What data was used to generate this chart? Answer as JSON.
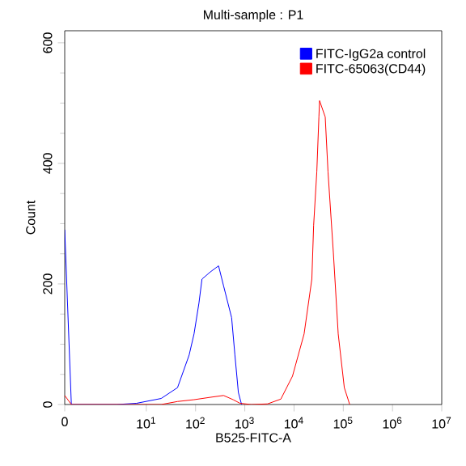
{
  "chart_data": {
    "type": "line",
    "title": "Multi-sample : P1",
    "xlabel": "B525-FITC-A",
    "ylabel": "Count",
    "log": "x",
    "xlim": [
      0.22,
      10000000
    ],
    "xticks": [
      {
        "value": 0.22,
        "label": "0"
      },
      {
        "value": 10,
        "label": "10$^{1}$"
      },
      {
        "value": 100,
        "label": "10$^{2}$"
      },
      {
        "value": 1000,
        "label": "10$^{3}$"
      },
      {
        "value": 10000,
        "label": "10$^{4}$"
      },
      {
        "value": 100000,
        "label": "10$^{5}$"
      },
      {
        "value": 1000000,
        "label": "10$^{6}$"
      },
      {
        "value": 10000000,
        "label": "10$^{7}$"
      }
    ],
    "ylim": [
      0,
      620
    ],
    "yticks": [
      0,
      200,
      400,
      600
    ],
    "grid": false,
    "legend": "top right",
    "marker": "none",
    "line_style": "solid",
    "series": [
      {
        "name": "FITC-IgG2a control",
        "color": "#0000ff",
        "x": [
          0.22,
          0.3,
          2.5,
          6.3,
          20,
          43,
          74,
          93,
          117,
          135,
          200,
          293,
          370,
          540,
          630,
          740,
          860
        ],
        "values": [
          290,
          0,
          0,
          2,
          10,
          28,
          82,
          117,
          168,
          208,
          220,
          230,
          197,
          144,
          82,
          20,
          0
        ]
      },
      {
        "name": "FITC-65063(CD44)",
        "color": "#ff0000",
        "x": [
          0.22,
          0.3,
          20,
          43,
          93,
          200,
          370,
          580,
          800,
          1350,
          2900,
          5400,
          9300,
          16000,
          23000,
          25000,
          29000,
          32000,
          33000,
          43000,
          49000,
          63000,
          79000,
          105000,
          135000
        ],
        "values": [
          15,
          0,
          0,
          5,
          8,
          12,
          15,
          8,
          2,
          0,
          1,
          9,
          47,
          117,
          208,
          297,
          386,
          477,
          504,
          477,
          386,
          251,
          117,
          28,
          0
        ]
      }
    ]
  }
}
